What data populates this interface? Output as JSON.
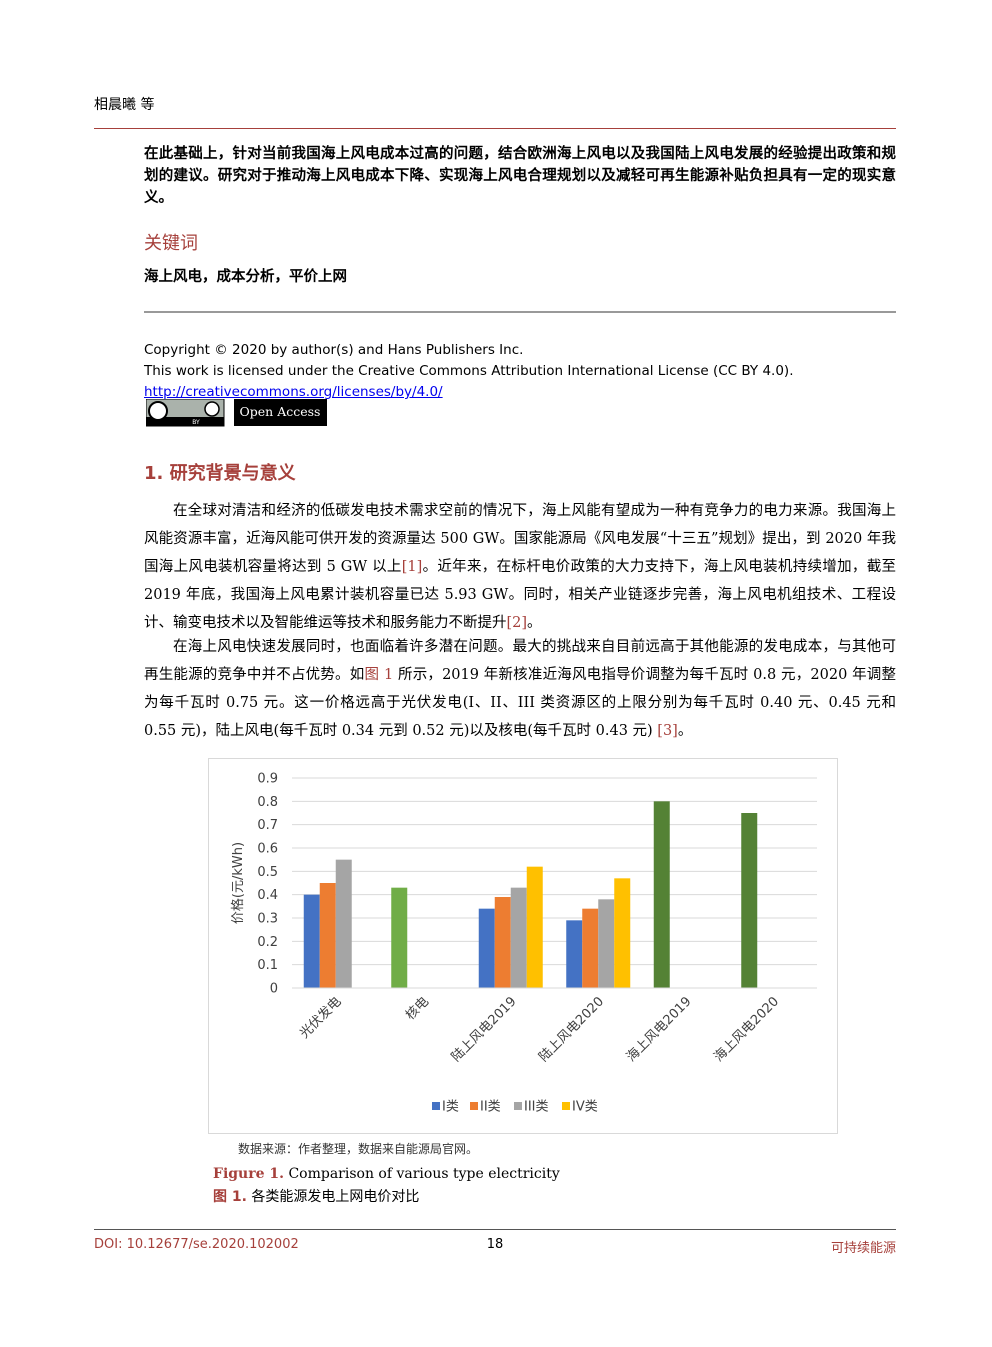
{
  "header": {
    "author": "相晨曦 等"
  },
  "abstract_tail": "在此基础上，针对当前我国海上风电成本过高的问题，结合欧洲海上风电以及我国陆上风电发展的经验提出政策和规划的建议。研究对于推动海上风电成本下降、实现海上风电合理规划以及减轻可再生能源补贴负担具有一定的现实意义。",
  "keywords": {
    "heading": "关键词",
    "text": "海上风电，成本分析，平价上网"
  },
  "copyright": {
    "lines": [
      "Copyright © 2020 by author(s) and Hans Publishers Inc.",
      "This work is licensed under the Creative Commons Attribution International License (CC BY 4.0)."
    ],
    "link": "http://creativecommons.org/licenses/by/4.0/",
    "badge": "BY",
    "open_access": "Open Access"
  },
  "section": {
    "heading": "1. 研究背景与意义",
    "paragraphs": [
      [
        "在全球对清洁和经济的低碳发电技术需求空前的情况下，海上风能有望成为一种有竞争力的电力来源。我国海上风能资源丰富，近海风能可供开发的资源量达 500 GW。国家能源局《风电发展“十三五”规划》提出，到 2020 年我国海上风电装机容量将达到 5 GW 以上",
        "[1]",
        "。近年来，在标杆电价政策的大力支持下，海上风电装机持续增加，截至 2019 年底，我国海上风电累计装机容量已达 5.93 GW。同时，相关产业链逐步完善，海上风电机组技术、工程设计、输变电技术以及智能维运等技术和服务能力不断提升",
        "[2]",
        "。"
      ],
      [
        "在海上风电快速发展同时，也面临着许多潜在问题。最大的挑战来自目前远高于其他能源的发电成本，与其他可再生能源的竞争中并不占优势。如",
        "图 1",
        " 所示，2019 年新核准近海风电指导价调整为每千瓦时 0.8 元，2020 年调整为每千瓦时 0.75 元。这一价格远高于光伏发电(I、II、III 类资源区的上限分别为每千瓦时 0.40 元、0.45 元和 0.55 元)，陆上风电(每千瓦时 0.34 元到 0.52 元)以及核电(每千瓦时 0.43 元) ",
        "[3]",
        "。"
      ]
    ]
  },
  "chart_data": {
    "type": "bar",
    "y_label": "价格(元/kWh)",
    "categories": [
      "光伏发电",
      "核电",
      "陆上风电2019",
      "陆上风电2020",
      "海上风电2019",
      "海上风电2020"
    ],
    "series": [
      {
        "name": "I类",
        "color": "#4472c4",
        "colors": [
          "#4472c4",
          "#70ad47",
          "#4472c4",
          "#4472c4",
          "#548235",
          "#548235"
        ],
        "values": [
          0.4,
          0.43,
          0.34,
          0.29,
          0.8,
          0.75
        ]
      },
      {
        "name": "II类",
        "color": "#ed7d31",
        "values": [
          0.45,
          null,
          0.39,
          0.34,
          null,
          null
        ]
      },
      {
        "name": "III类",
        "color": "#a5a5a5",
        "values": [
          0.55,
          null,
          0.43,
          0.38,
          null,
          null
        ]
      },
      {
        "name": "IV类",
        "color": "#ffc000",
        "values": [
          null,
          null,
          0.52,
          0.47,
          null,
          null
        ]
      }
    ],
    "ylim": [
      0,
      0.9
    ],
    "yticks": [
      0,
      0.1,
      0.2,
      0.3,
      0.4,
      0.5,
      0.6,
      0.7,
      0.8,
      0.9
    ],
    "grid": true,
    "legend": "bottom"
  },
  "figure": {
    "source": "数据来源：作者整理，数据来自能源局官网。",
    "caption_en_label": "Figure 1.",
    "caption_en": "Comparison of various type electricity",
    "caption_zh_label": "图 1.",
    "caption_zh": "各类能源发电上网电价对比"
  },
  "footer": {
    "doi": "DOI: 10.12677/se.2020.102002",
    "page": "18",
    "journal": "可持续能源"
  }
}
